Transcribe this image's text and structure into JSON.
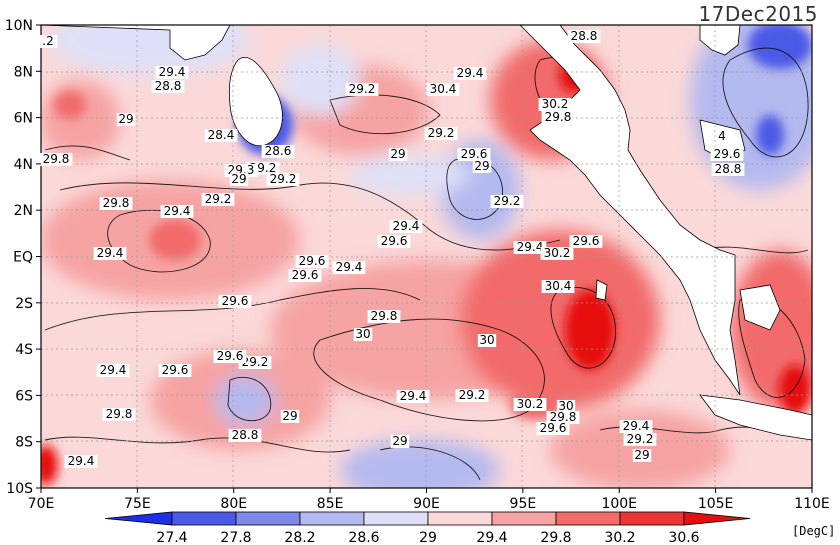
{
  "title": "17Dec2015",
  "x_ticks": [
    "70E",
    "75E",
    "80E",
    "85E",
    "90E",
    "95E",
    "100E",
    "105E",
    "110E"
  ],
  "y_ticks": [
    "10N",
    "8N",
    "6N",
    "4N",
    "2N",
    "EQ",
    "2S",
    "4S",
    "6S",
    "8S",
    "10S"
  ],
  "colorbar": {
    "labels": [
      "27.4",
      "27.8",
      "28.2",
      "28.6",
      "29",
      "29.4",
      "29.8",
      "30.2",
      "30.6"
    ],
    "colors": [
      "#1f2fe6",
      "#4b5ae6",
      "#7e88e6",
      "#b4b9ef",
      "#dfe0f7",
      "#fbd9d9",
      "#f6a3a3",
      "#f26a6a",
      "#ec3535",
      "#e60f0f"
    ],
    "unit": "[DegC]"
  },
  "contour_labels": [
    ".2",
    "28.8",
    "29",
    "29.4",
    "29.2",
    "29.4",
    "30.4",
    "28.8",
    "29",
    "6",
    "29.2",
    "30.2",
    "29.8",
    "28.4",
    "28.6",
    "29.2",
    "29.2",
    "29",
    "29.6",
    "29.8",
    "29.3",
    "29",
    "29.2",
    "28.8",
    "4",
    "29.6",
    "29.8",
    "29.4",
    "29.2",
    "29.4",
    "29.6",
    "29.4",
    "29.6",
    "29.6",
    "29.4",
    "29.4",
    "30.2",
    "30.4",
    "29.6",
    "29.8",
    "30",
    "30",
    "29.6",
    "29.2",
    "29.6",
    "29.4",
    "29.6",
    "29.8",
    "29.4",
    "29.2",
    "30.2",
    "30",
    "29.8",
    "29.6",
    "29",
    "28.8",
    "29",
    "29.4",
    "29.4",
    "29.2",
    "29"
  ]
}
